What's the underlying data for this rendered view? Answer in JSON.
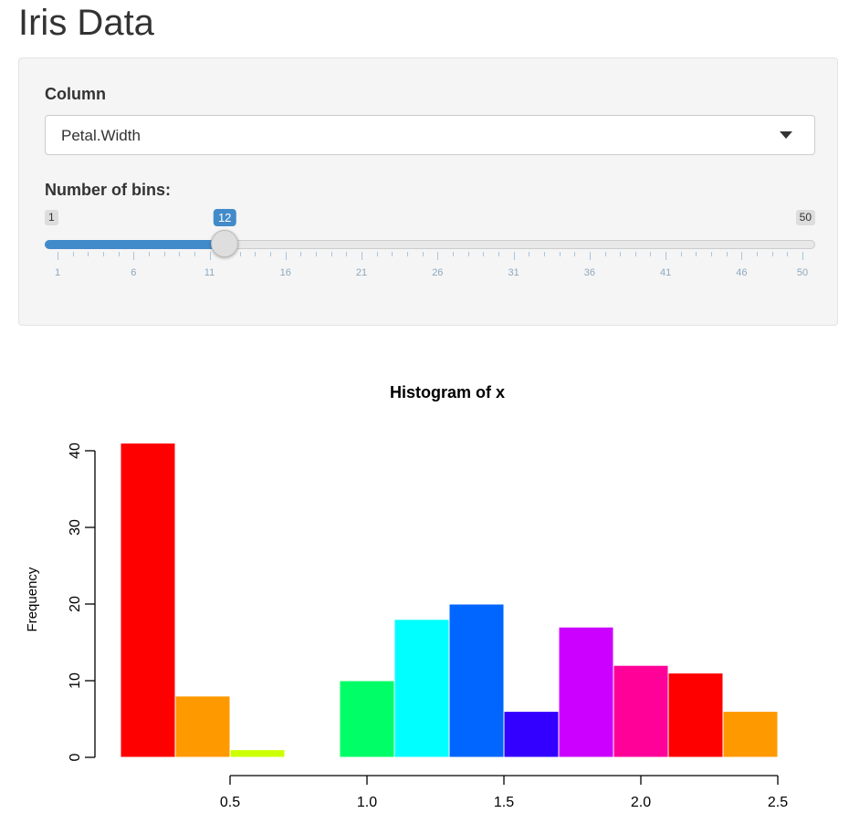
{
  "page": {
    "title": "Iris Data"
  },
  "column_select": {
    "label": "Column",
    "value": "Petal.Width"
  },
  "bins_slider": {
    "label": "Number of bins:",
    "min": 1,
    "max": 50,
    "value": 12,
    "min_label": "1",
    "max_label": "50",
    "value_label": "12",
    "tick_labels": [
      "1",
      "6",
      "11",
      "16",
      "21",
      "26",
      "31",
      "36",
      "41",
      "46",
      "50"
    ],
    "accent": "#428bca"
  },
  "chart_data": {
    "type": "bar",
    "title": "Histogram of x",
    "ylabel": "Frequency",
    "xlabel": "",
    "bins": [
      {
        "x0": 0.1,
        "x1": 0.3,
        "count": 41,
        "color": "#FF0000"
      },
      {
        "x0": 0.3,
        "x1": 0.5,
        "count": 8,
        "color": "#FF9900"
      },
      {
        "x0": 0.5,
        "x1": 0.7,
        "count": 1,
        "color": "#CCFF00"
      },
      {
        "x0": 0.7,
        "x1": 0.9,
        "count": 0,
        "color": "#33FF00"
      },
      {
        "x0": 0.9,
        "x1": 1.1,
        "count": 10,
        "color": "#00FF66"
      },
      {
        "x0": 1.1,
        "x1": 1.3,
        "count": 18,
        "color": "#00FFFF"
      },
      {
        "x0": 1.3,
        "x1": 1.5,
        "count": 20,
        "color": "#0066FF"
      },
      {
        "x0": 1.5,
        "x1": 1.7,
        "count": 6,
        "color": "#3300FF"
      },
      {
        "x0": 1.7,
        "x1": 1.9,
        "count": 17,
        "color": "#CC00FF"
      },
      {
        "x0": 1.9,
        "x1": 2.1,
        "count": 12,
        "color": "#FF0099"
      },
      {
        "x0": 2.1,
        "x1": 2.3,
        "count": 11,
        "color": "#FF0000"
      },
      {
        "x0": 2.3,
        "x1": 2.5,
        "count": 6,
        "color": "#FF9900"
      }
    ],
    "x_ticks": [
      0.5,
      1.0,
      1.5,
      2.0,
      2.5
    ],
    "x_tick_labels": [
      "0.5",
      "1.0",
      "1.5",
      "2.0",
      "2.5"
    ],
    "y_ticks": [
      0,
      10,
      20,
      30,
      40
    ],
    "y_tick_labels": [
      "0",
      "10",
      "20",
      "30",
      "40"
    ],
    "xlim": [
      0.1,
      2.5
    ],
    "ylim": [
      0,
      41
    ],
    "grid": false,
    "legend": "none"
  }
}
